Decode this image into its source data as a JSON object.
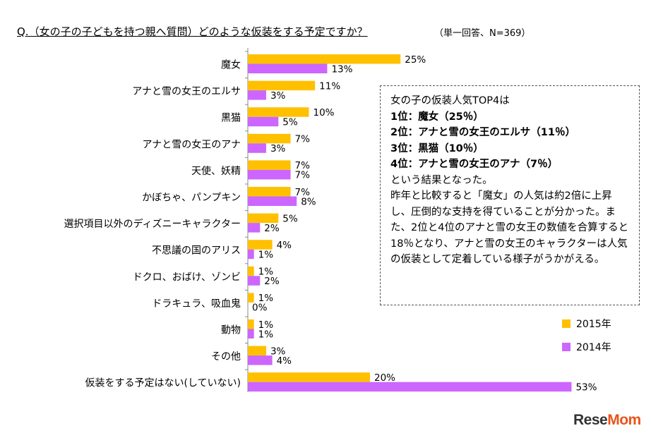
{
  "header": {
    "title": "Q.（女の子の子どもを持つ親へ質問）どのような仮装をする予定ですか？",
    "note": "（単一回答、N=369）"
  },
  "chart_data": {
    "type": "bar",
    "orientation": "horizontal",
    "categories": [
      "魔女",
      "アナと雪の女王のエルサ",
      "黒猫",
      "アナと雪の女王のアナ",
      "天使、妖精",
      "かぼちゃ、パンプキン",
      "選択項目以外のディズニーキャラクター",
      "不思議の国のアリス",
      "ドクロ、おばけ、ゾンビ",
      "ドラキュラ、吸血鬼",
      "動物",
      "その他",
      "仮装をする予定はない(していない)"
    ],
    "series": [
      {
        "name": "2015年",
        "color": "#ffc000",
        "values": [
          25,
          11,
          10,
          7,
          7,
          7,
          5,
          4,
          1,
          1,
          1,
          3,
          20
        ]
      },
      {
        "name": "2014年",
        "color": "#cc66ff",
        "values": [
          13,
          3,
          5,
          3,
          7,
          8,
          2,
          1,
          2,
          0,
          1,
          4,
          53
        ]
      }
    ],
    "value_suffix": "%",
    "legend_position": "right",
    "grid": false
  },
  "callout": {
    "lines": [
      "女の子の仮装人気TOP4は",
      "1位：魔女（25％）",
      "2位：アナと雪の女王のエルサ（11％）",
      "3位：黒猫（10％）",
      "4位：アナと雪の女王のアナ（7％）",
      "という結果となった。",
      "昨年と比較すると「魔女」の人気は約2倍に上昇し、圧倒的な支持を得ていることが分かった。また、2位と4位のアナと雪の女王の数値を合算すると18％となり、アナと雪の女王のキャラクターは人気の仮装として定着している様子がうかがえる。"
    ]
  },
  "logo": {
    "part1": "Rese",
    "part2": "Mom"
  }
}
